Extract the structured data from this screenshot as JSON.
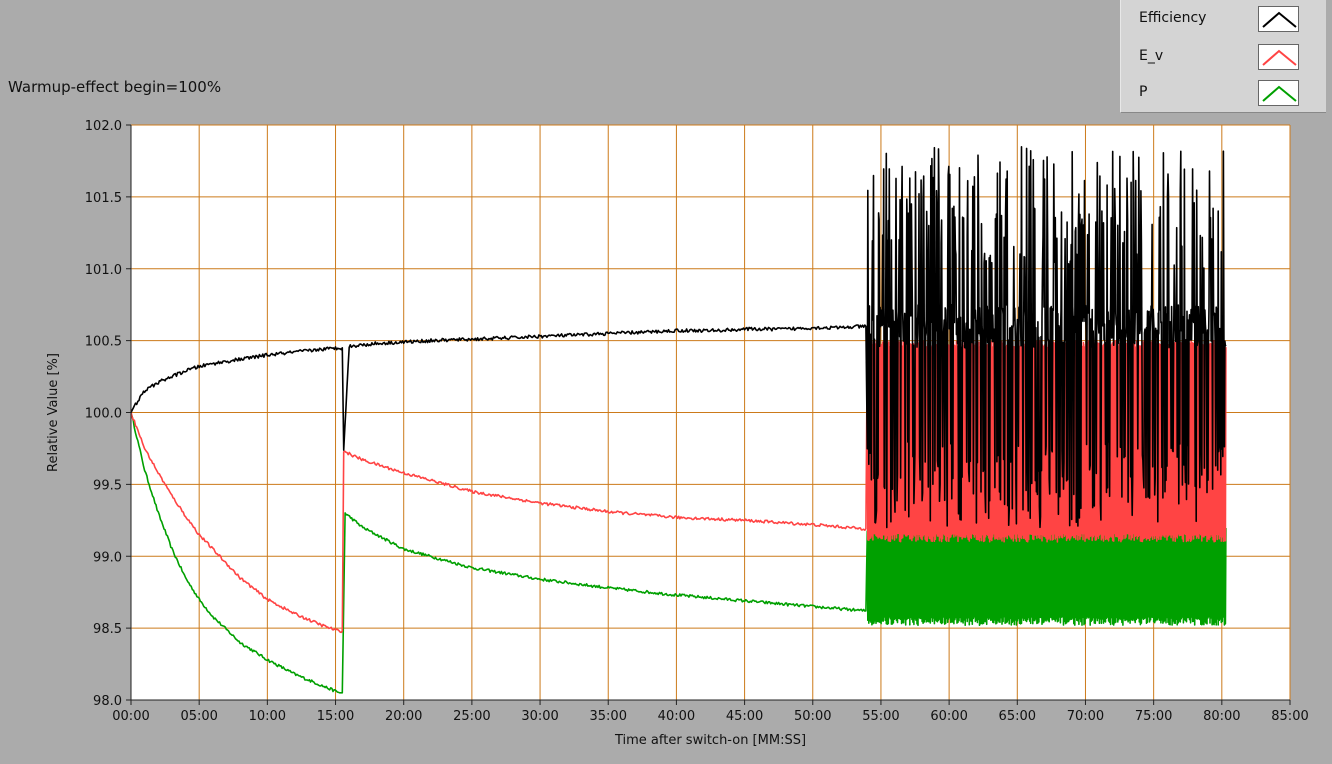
{
  "panel_title": "Warmup-effect begin=100%",
  "chart_data": {
    "type": "line",
    "title": "Warmup-effect begin=100%",
    "xlabel": "Time after switch-on [MM:SS]",
    "ylabel": "Relative Value [%]",
    "x_unit": "minutes",
    "xlim": [
      0,
      85
    ],
    "ylim": [
      98.0,
      102.0
    ],
    "x_ticks": [
      0,
      5,
      10,
      15,
      20,
      25,
      30,
      35,
      40,
      45,
      50,
      55,
      60,
      65,
      70,
      75,
      80,
      85
    ],
    "x_tick_labels": [
      "00:00",
      "05:00",
      "10:00",
      "15:00",
      "20:00",
      "25:00",
      "30:00",
      "35:00",
      "40:00",
      "45:00",
      "50:00",
      "55:00",
      "60:00",
      "65:00",
      "70:00",
      "75:00",
      "80:00",
      "85:00"
    ],
    "y_ticks": [
      98.0,
      98.5,
      99.0,
      99.5,
      100.0,
      100.5,
      101.0,
      101.5,
      102.0
    ],
    "y_tick_labels": [
      "98.0",
      "98.5",
      "99.0",
      "99.5",
      "100.0",
      "100.5",
      "101.0",
      "101.5",
      "102.0"
    ],
    "grid": true,
    "grid_color": "#cc7a1a",
    "plot_background": "#ffffff",
    "legend_position": "top-right",
    "series": [
      {
        "name": "Efficiency",
        "color": "#000000",
        "x": [
          0,
          0.5,
          1,
          2,
          3,
          4,
          5,
          6,
          8,
          10,
          12,
          14,
          15.5,
          15.6,
          16,
          18,
          20,
          22,
          25,
          28,
          30,
          33,
          35,
          38,
          40,
          43,
          45,
          48,
          50,
          52,
          53.9
        ],
        "values": [
          100.0,
          100.08,
          100.15,
          100.21,
          100.25,
          100.29,
          100.32,
          100.34,
          100.37,
          100.4,
          100.42,
          100.44,
          100.45,
          99.75,
          100.46,
          100.48,
          100.49,
          100.5,
          100.51,
          100.52,
          100.53,
          100.54,
          100.55,
          100.56,
          100.57,
          100.57,
          100.58,
          100.58,
          100.59,
          100.59,
          100.6
        ],
        "noisy_segment": {
          "x_range": [
            54,
            80.3
          ],
          "min": 99.2,
          "max": 101.85
        }
      },
      {
        "name": "E_v",
        "color": "#ff4444",
        "x": [
          0,
          1,
          2,
          3,
          4,
          5,
          6,
          8,
          10,
          12,
          14,
          15.2,
          15.5,
          15.6,
          17,
          20,
          25,
          30,
          35,
          40,
          45,
          50,
          53.9
        ],
        "values": [
          100.0,
          99.75,
          99.58,
          99.42,
          99.28,
          99.15,
          99.05,
          98.85,
          98.7,
          98.6,
          98.52,
          98.48,
          98.48,
          99.73,
          99.67,
          99.58,
          99.45,
          99.37,
          99.31,
          99.27,
          99.25,
          99.22,
          99.19
        ],
        "noisy_segment": {
          "x_range": [
            54,
            80.3
          ],
          "min": 99.1,
          "max": 100.5
        }
      },
      {
        "name": "P",
        "color": "#00a000",
        "x": [
          0,
          1,
          2,
          3,
          4,
          5,
          6,
          8,
          10,
          12,
          14,
          15.3,
          15.5,
          15.7,
          17,
          20,
          25,
          30,
          35,
          40,
          45,
          50,
          53.9
        ],
        "values": [
          100.0,
          99.6,
          99.3,
          99.05,
          98.85,
          98.7,
          98.58,
          98.4,
          98.28,
          98.18,
          98.1,
          98.05,
          98.05,
          99.3,
          99.2,
          99.05,
          98.92,
          98.84,
          98.78,
          98.73,
          98.69,
          98.65,
          98.62
        ],
        "noisy_segment": {
          "x_range": [
            54,
            80.3
          ],
          "min": 98.52,
          "max": 99.2
        }
      }
    ]
  }
}
